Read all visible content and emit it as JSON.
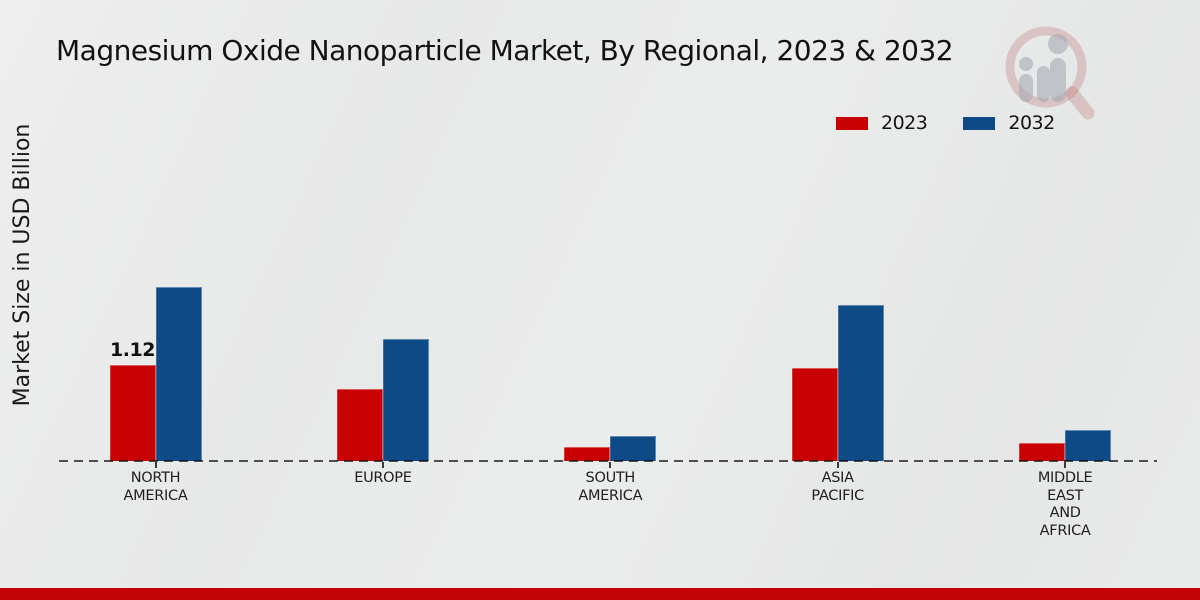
{
  "title": "Magnesium Oxide Nanoparticle Market, By Regional, 2023 & 2032",
  "ylabel": "Market Size in USD Billion",
  "legend": [
    {
      "label": "2023",
      "color": "#c80202"
    },
    {
      "label": "2032",
      "color": "#0e4a85"
    }
  ],
  "colors": {
    "series_2023": "#c80202",
    "series_2032": "#0e4a85",
    "footer_band": "#c20404",
    "background": "#e8e9e9",
    "axis": "#3a3a3a"
  },
  "chart_data": {
    "type": "bar",
    "categories": [
      "NORTH AMERICA",
      "EUROPE",
      "SOUTH AMERICA",
      "ASIA PACIFIC",
      "MIDDLE EAST AND AFRICA"
    ],
    "series": [
      {
        "name": "2023",
        "color": "#c80202",
        "values": [
          1.12,
          0.84,
          0.16,
          1.08,
          0.21
        ]
      },
      {
        "name": "2032",
        "color": "#0e4a85",
        "values": [
          2.03,
          1.42,
          0.29,
          1.82,
          0.36
        ]
      }
    ],
    "annotations": [
      {
        "series_index": 0,
        "category_index": 0,
        "text": "1.12"
      }
    ],
    "title": "Magnesium Oxide Nanoparticle Market, By Regional, 2023 & 2032",
    "xlabel": "",
    "ylabel": "Market Size in USD Billion",
    "ylim": [
      0,
      2.2
    ],
    "grid": false,
    "baseline_style": "dashed",
    "legend_position": "top-right"
  },
  "watermark": {
    "icon": "magnifier-bar-chart-logo"
  }
}
